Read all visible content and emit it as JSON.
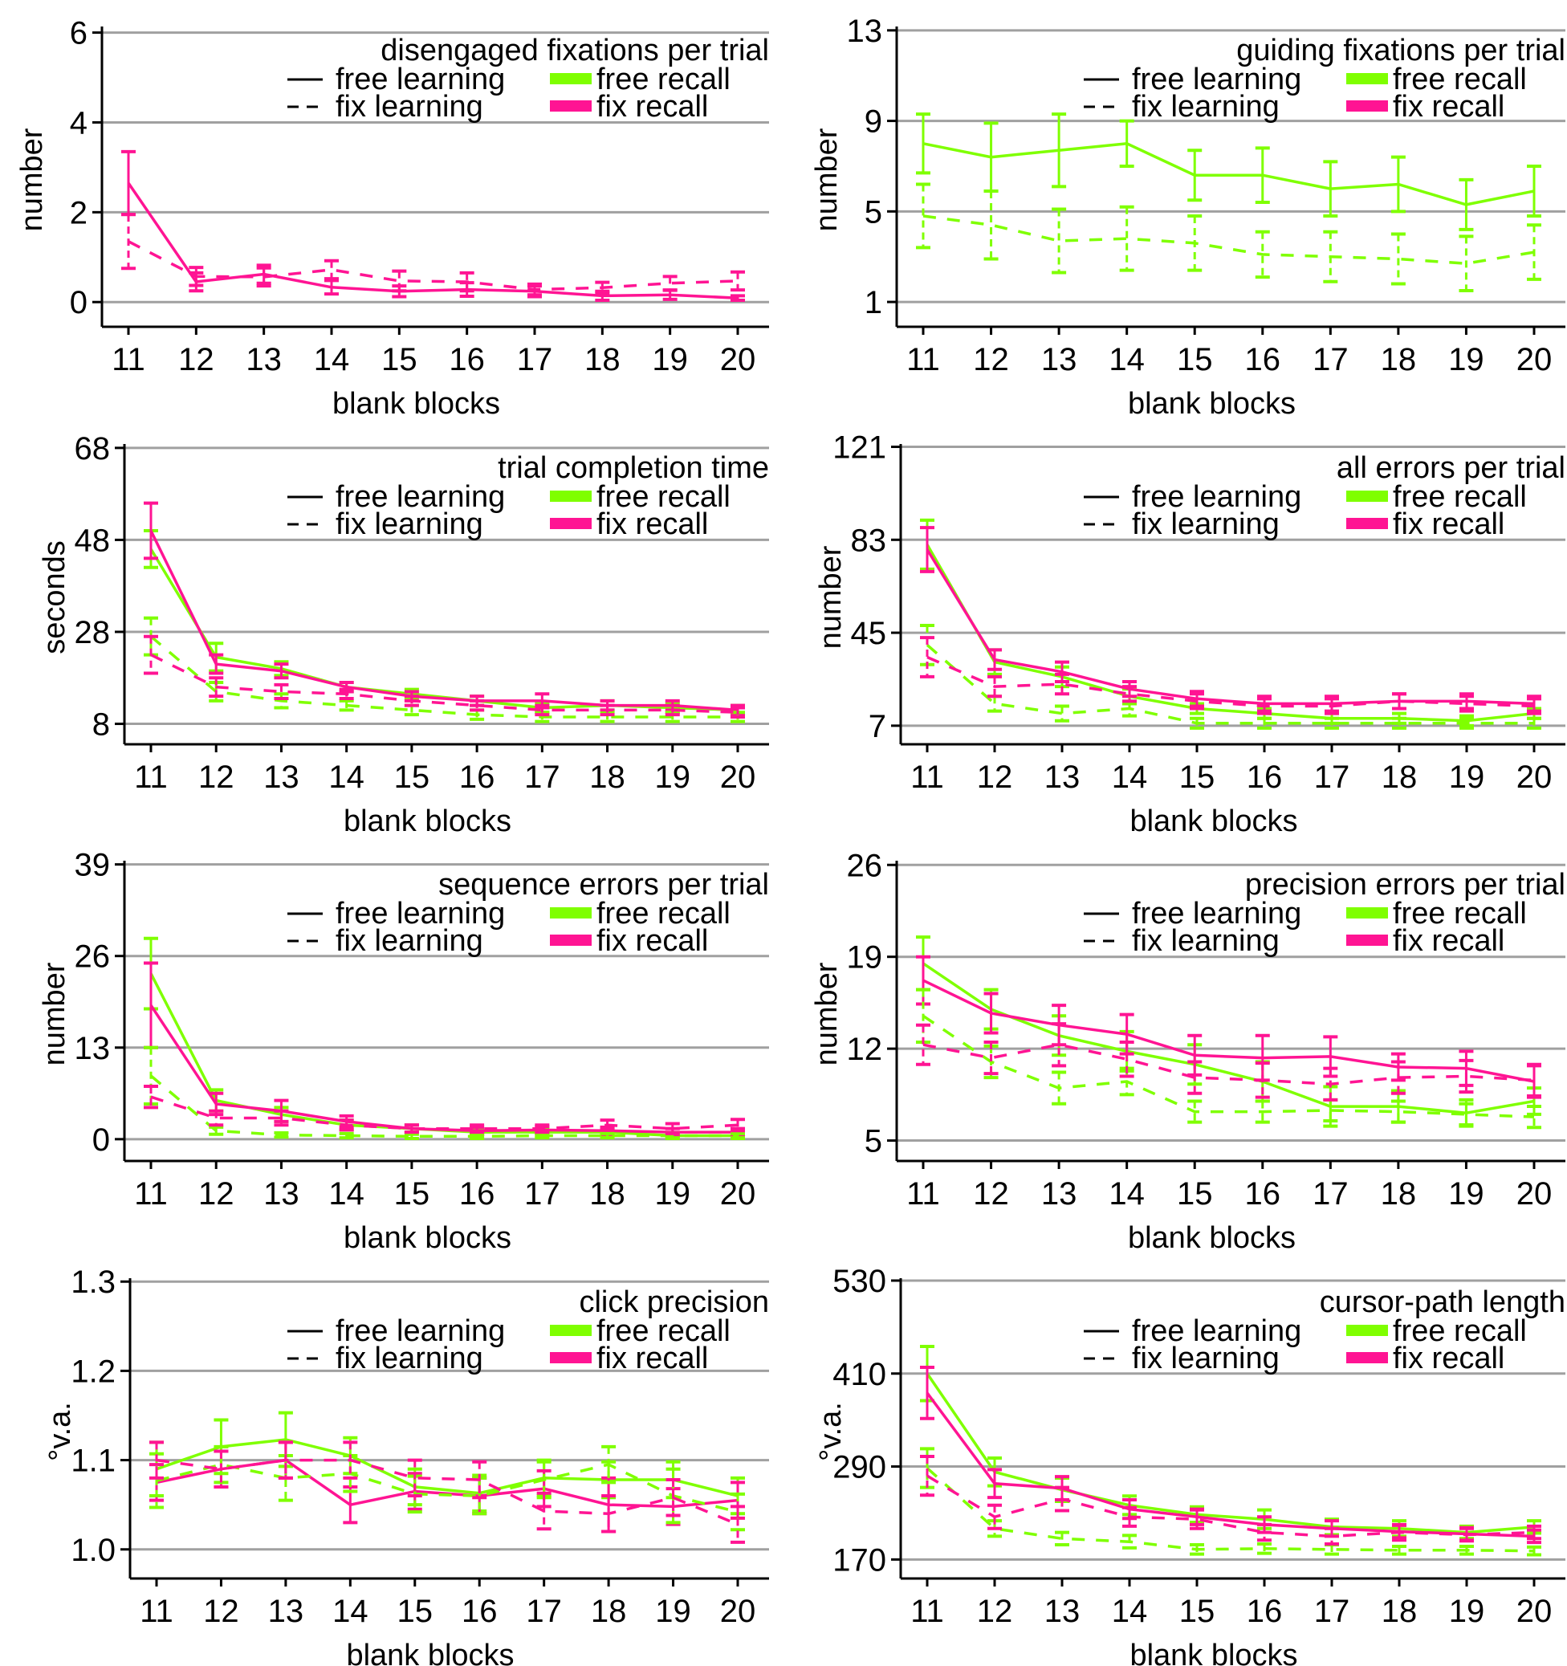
{
  "colors": {
    "free": "#7fff00",
    "fix": "#ff1493",
    "grid": "#a0a0a0",
    "axis": "#000000"
  },
  "legend": {
    "free_learning": "free learning",
    "fix_learning": "fix learning",
    "free_recall": "free recall",
    "fix_recall": "fix recall"
  },
  "chart_data": [
    {
      "type": "line",
      "title": "disengaged fixations per trial",
      "xlabel": "blank blocks",
      "ylabel": "number",
      "categories": [
        "11",
        "12",
        "13",
        "14",
        "15",
        "16",
        "17",
        "18",
        "19",
        "20"
      ],
      "yticks": [
        0,
        2,
        4,
        6
      ],
      "ytick_labels": [
        "0",
        "2",
        "4",
        "6"
      ],
      "ylim": [
        -0.3,
        6.1
      ],
      "grid": true,
      "series": [
        {
          "name": "fix recall / free learning",
          "color": "fix",
          "style": "solid",
          "values": [
            2.65,
            0.45,
            0.62,
            0.33,
            0.24,
            0.28,
            0.24,
            0.14,
            0.16,
            0.09
          ],
          "err": [
            0.7,
            0.2,
            0.2,
            0.15,
            0.12,
            0.15,
            0.12,
            0.1,
            0.1,
            0.05
          ]
        },
        {
          "name": "fix recall / fix learning",
          "color": "fix",
          "style": "dashed",
          "values": [
            1.35,
            0.57,
            0.56,
            0.72,
            0.47,
            0.45,
            0.28,
            0.32,
            0.42,
            0.47
          ],
          "err": [
            0.6,
            0.2,
            0.2,
            0.2,
            0.22,
            0.2,
            0.12,
            0.12,
            0.15,
            0.2
          ]
        }
      ]
    },
    {
      "type": "line",
      "title": "guiding fixations per trial",
      "xlabel": "blank blocks",
      "ylabel": "number",
      "categories": [
        "11",
        "12",
        "13",
        "14",
        "15",
        "16",
        "17",
        "18",
        "19",
        "20"
      ],
      "yticks": [
        1,
        5,
        9,
        13
      ],
      "ytick_labels": [
        "1",
        "5",
        "9",
        "13"
      ],
      "ylim": [
        0.4,
        13.1
      ],
      "grid": true,
      "series": [
        {
          "name": "free recall / free learning",
          "color": "free",
          "style": "solid",
          "values": [
            8.0,
            7.4,
            7.7,
            8.0,
            6.6,
            6.6,
            6.0,
            6.2,
            5.3,
            5.9
          ],
          "err": [
            1.3,
            1.5,
            1.6,
            1.0,
            1.1,
            1.2,
            1.2,
            1.2,
            1.1,
            1.1
          ]
        },
        {
          "name": "free recall / fix learning",
          "color": "free",
          "style": "dashed",
          "values": [
            4.8,
            4.4,
            3.7,
            3.8,
            3.6,
            3.1,
            3.0,
            2.9,
            2.7,
            3.2
          ],
          "err": [
            1.4,
            1.5,
            1.4,
            1.4,
            1.2,
            1.0,
            1.1,
            1.1,
            1.2,
            1.2
          ]
        }
      ]
    },
    {
      "type": "line",
      "title": "trial completion time",
      "xlabel": "blank blocks",
      "ylabel": "seconds",
      "categories": [
        "11",
        "12",
        "13",
        "14",
        "15",
        "16",
        "17",
        "18",
        "19",
        "20"
      ],
      "yticks": [
        8,
        28,
        48,
        68
      ],
      "ytick_labels": [
        "8",
        "28",
        "48",
        "68"
      ],
      "ylim": [
        6,
        68.5
      ],
      "grid": true,
      "series": [
        {
          "name": "free recall / free learning",
          "color": "free",
          "style": "solid",
          "values": [
            46,
            22.5,
            20,
            16,
            14.5,
            13,
            11.5,
            12,
            11.5,
            11
          ],
          "err": [
            4,
            3,
            1.5,
            1,
            1,
            1,
            1,
            1,
            1,
            1
          ]
        },
        {
          "name": "fix recall / free learning",
          "color": "fix",
          "style": "solid",
          "values": [
            50,
            21,
            19.5,
            16,
            14,
            13,
            13,
            12,
            12,
            11
          ],
          "err": [
            6,
            2,
            1.5,
            1,
            1,
            1,
            1.5,
            1,
            1,
            1
          ]
        },
        {
          "name": "free recall / fix learning",
          "color": "free",
          "style": "dashed",
          "values": [
            27,
            15,
            13,
            12,
            11,
            10,
            9.5,
            9.5,
            9.5,
            9.5
          ],
          "err": [
            4,
            2,
            1.5,
            1,
            1,
            1,
            1,
            1,
            1,
            1
          ]
        },
        {
          "name": "fix recall / fix learning",
          "color": "fix",
          "style": "dashed",
          "values": [
            23,
            16,
            15,
            14.5,
            13,
            12,
            11,
            11,
            11,
            10.5
          ],
          "err": [
            4,
            2,
            1.5,
            1,
            1,
            1,
            1,
            1,
            1,
            1
          ]
        }
      ]
    },
    {
      "type": "line",
      "title": "all errors per trial",
      "xlabel": "blank blocks",
      "ylabel": "number",
      "categories": [
        "11",
        "12",
        "13",
        "14",
        "15",
        "16",
        "17",
        "18",
        "19",
        "20"
      ],
      "yticks": [
        7,
        45,
        83,
        121
      ],
      "ytick_labels": [
        "7",
        "45",
        "83",
        "121"
      ],
      "ylim": [
        4,
        121.5
      ],
      "grid": true,
      "series": [
        {
          "name": "free recall / free learning",
          "color": "free",
          "style": "solid",
          "values": [
            81,
            33,
            27,
            19,
            14,
            12,
            10,
            10,
            9,
            12
          ],
          "err": [
            10,
            5,
            4,
            3,
            2,
            2,
            2,
            2,
            2,
            2
          ]
        },
        {
          "name": "fix recall / free learning",
          "color": "fix",
          "style": "solid",
          "values": [
            79,
            34,
            29,
            22,
            18,
            16,
            16,
            17,
            17,
            16
          ],
          "err": [
            9,
            4,
            4,
            3,
            3,
            3,
            3,
            3,
            3,
            3
          ]
        },
        {
          "name": "free recall / fix learning",
          "color": "free",
          "style": "dashed",
          "values": [
            40,
            16,
            12,
            14,
            8,
            8,
            8,
            8,
            8,
            8
          ],
          "err": [
            8,
            3,
            3,
            3,
            2,
            2,
            2,
            2,
            2,
            2
          ]
        },
        {
          "name": "fix recall / fix learning",
          "color": "fix",
          "style": "dashed",
          "values": [
            35,
            23,
            24,
            20,
            17,
            15,
            15,
            17,
            16,
            15
          ],
          "err": [
            8,
            4,
            4,
            3,
            3,
            3,
            3,
            3,
            3,
            3
          ]
        }
      ]
    },
    {
      "type": "line",
      "title": "sequence errors per trial",
      "xlabel": "blank blocks",
      "ylabel": "number",
      "categories": [
        "11",
        "12",
        "13",
        "14",
        "15",
        "16",
        "17",
        "18",
        "19",
        "20"
      ],
      "yticks": [
        0,
        13,
        26,
        39
      ],
      "ytick_labels": [
        "0",
        "13",
        "26",
        "39"
      ],
      "ylim": [
        -1.5,
        39.3
      ],
      "grid": true,
      "series": [
        {
          "name": "free recall / free learning",
          "color": "free",
          "style": "solid",
          "values": [
            23.5,
            5.5,
            3.5,
            2,
            1.5,
            1,
            1,
            1,
            0.5,
            0.5
          ],
          "err": [
            5,
            1.5,
            1,
            0.7,
            0.5,
            0.5,
            0.5,
            0.5,
            0.4,
            0.4
          ]
        },
        {
          "name": "fix recall / free learning",
          "color": "fix",
          "style": "solid",
          "values": [
            19,
            5,
            4,
            2.5,
            1.5,
            1.2,
            1.3,
            1.2,
            1,
            1
          ],
          "err": [
            6,
            1.5,
            1.5,
            0.8,
            0.5,
            0.5,
            0.5,
            0.5,
            0.5,
            0.5
          ]
        },
        {
          "name": "free recall / fix learning",
          "color": "free",
          "style": "dashed",
          "values": [
            9,
            1.2,
            0.6,
            0.5,
            0.4,
            0.4,
            0.5,
            0.5,
            0.5,
            0.5
          ],
          "err": [
            4,
            0.5,
            0.3,
            0.3,
            0.3,
            0.3,
            0.3,
            0.3,
            0.3,
            0.3
          ]
        },
        {
          "name": "fix recall / fix learning",
          "color": "fix",
          "style": "dashed",
          "values": [
            6,
            3,
            3,
            2,
            1.5,
            1.5,
            1.5,
            2,
            1.5,
            2
          ],
          "err": [
            1.5,
            1,
            1,
            0.7,
            0.5,
            0.5,
            0.5,
            0.7,
            0.7,
            0.8
          ]
        }
      ]
    },
    {
      "type": "line",
      "title": "precision errors per trial",
      "xlabel": "blank blocks",
      "ylabel": "number",
      "categories": [
        "11",
        "12",
        "13",
        "14",
        "15",
        "16",
        "17",
        "18",
        "19",
        "20"
      ],
      "yticks": [
        5,
        12,
        19,
        26
      ],
      "ytick_labels": [
        "5",
        "12",
        "19",
        "26"
      ],
      "ylim": [
        4.3,
        26.2
      ],
      "grid": true,
      "series": [
        {
          "name": "free recall / free learning",
          "color": "free",
          "style": "solid",
          "values": [
            18.5,
            15,
            13,
            11.8,
            10.8,
            9.5,
            7.6,
            7.6,
            7.1,
            8
          ],
          "err": [
            2,
            1.5,
            1.5,
            1.5,
            1.5,
            1.5,
            1.5,
            1.2,
            1,
            1
          ]
        },
        {
          "name": "fix recall / free learning",
          "color": "fix",
          "style": "solid",
          "values": [
            17.2,
            14.7,
            13.8,
            13.1,
            11.5,
            11.3,
            11.4,
            10.6,
            10.5,
            9.5
          ],
          "err": [
            1.8,
            1.5,
            1.5,
            1.5,
            1.5,
            1.7,
            1.5,
            1,
            1.3,
            1.2
          ]
        },
        {
          "name": "free recall / fix learning",
          "color": "free",
          "style": "dashed",
          "values": [
            14.5,
            11,
            9,
            9.5,
            7.2,
            7.2,
            7.3,
            7.2,
            7,
            6.8
          ],
          "err": [
            2,
            1.2,
            1.2,
            1,
            0.8,
            0.8,
            0.8,
            0.8,
            0.8,
            0.8
          ]
        },
        {
          "name": "fix recall / fix learning",
          "color": "fix",
          "style": "dashed",
          "values": [
            12.3,
            11.3,
            12.3,
            11.2,
            9.8,
            9.6,
            9.3,
            9.8,
            9.9,
            9.6
          ],
          "err": [
            1.5,
            1.2,
            1.6,
            1.3,
            1.2,
            1.3,
            1.2,
            1.2,
            1.2,
            1.2
          ]
        }
      ]
    },
    {
      "type": "line",
      "title": "click precision",
      "xlabel": "blank blocks",
      "ylabel": "°v.a.",
      "categories": [
        "11",
        "12",
        "13",
        "14",
        "15",
        "16",
        "17",
        "18",
        "19",
        "20"
      ],
      "yticks": [
        1.0,
        1.1,
        1.2,
        1.3
      ],
      "ytick_labels": [
        "1.0",
        "1.1",
        "1.2",
        "1.3"
      ],
      "ylim": [
        0.98,
        1.302
      ],
      "grid": true,
      "series": [
        {
          "name": "free recall / free learning",
          "color": "free",
          "style": "solid",
          "values": [
            1.09,
            1.115,
            1.123,
            1.105,
            1.07,
            1.063,
            1.08,
            1.078,
            1.078,
            1.06
          ],
          "err": [
            0.03,
            0.03,
            0.03,
            0.02,
            0.02,
            0.02,
            0.02,
            0.02,
            0.02,
            0.02
          ]
        },
        {
          "name": "fix recall / free learning",
          "color": "fix",
          "style": "solid",
          "values": [
            1.075,
            1.09,
            1.1,
            1.05,
            1.065,
            1.06,
            1.068,
            1.05,
            1.048,
            1.055
          ],
          "err": [
            0.02,
            0.02,
            0.02,
            0.02,
            0.02,
            0.02,
            0.02,
            0.03,
            0.02,
            0.02
          ]
        },
        {
          "name": "free recall / fix learning",
          "color": "free",
          "style": "dashed",
          "values": [
            1.077,
            1.095,
            1.08,
            1.085,
            1.062,
            1.06,
            1.078,
            1.095,
            1.06,
            1.042
          ],
          "err": [
            0.03,
            0.02,
            0.025,
            0.02,
            0.02,
            0.02,
            0.02,
            0.02,
            0.03,
            0.02
          ]
        },
        {
          "name": "fix recall / fix learning",
          "color": "fix",
          "style": "dashed",
          "values": [
            1.1,
            1.09,
            1.1,
            1.1,
            1.08,
            1.078,
            1.043,
            1.04,
            1.058,
            1.028
          ],
          "err": [
            0.02,
            0.02,
            0.02,
            0.02,
            0.02,
            0.02,
            0.02,
            0.02,
            0.02,
            0.02
          ]
        }
      ]
    },
    {
      "type": "line",
      "title": "cursor-path length",
      "xlabel": "blank blocks",
      "ylabel": "°v.a.",
      "categories": [
        "11",
        "12",
        "13",
        "14",
        "15",
        "16",
        "17",
        "18",
        "19",
        "20"
      ],
      "yticks": [
        170,
        290,
        410,
        530
      ],
      "ytick_labels": [
        "170",
        "290",
        "410",
        "530"
      ],
      "ylim": [
        160,
        531
      ],
      "grid": true,
      "series": [
        {
          "name": "free recall / free learning",
          "color": "free",
          "style": "solid",
          "values": [
            410,
            283,
            260,
            240,
            228,
            222,
            212,
            210,
            205,
            212
          ],
          "err": [
            35,
            18,
            15,
            12,
            10,
            12,
            10,
            10,
            8,
            8
          ]
        },
        {
          "name": "fix recall / free learning",
          "color": "fix",
          "style": "solid",
          "values": [
            385,
            268,
            262,
            235,
            225,
            215,
            210,
            206,
            203,
            200
          ],
          "err": [
            33,
            18,
            15,
            12,
            10,
            10,
            10,
            8,
            8,
            8
          ]
        },
        {
          "name": "free recall / fix learning",
          "color": "free",
          "style": "dashed",
          "values": [
            288,
            210,
            197,
            193,
            183,
            184,
            183,
            182,
            182,
            181
          ],
          "err": [
            25,
            10,
            8,
            8,
            6,
            6,
            6,
            5,
            5,
            5
          ]
        },
        {
          "name": "fix recall / fix learning",
          "color": "fix",
          "style": "dashed",
          "values": [
            278,
            225,
            248,
            225,
            222,
            205,
            200,
            205,
            202,
            205
          ],
          "err": [
            25,
            15,
            15,
            12,
            12,
            10,
            10,
            10,
            8,
            8
          ]
        }
      ]
    }
  ]
}
